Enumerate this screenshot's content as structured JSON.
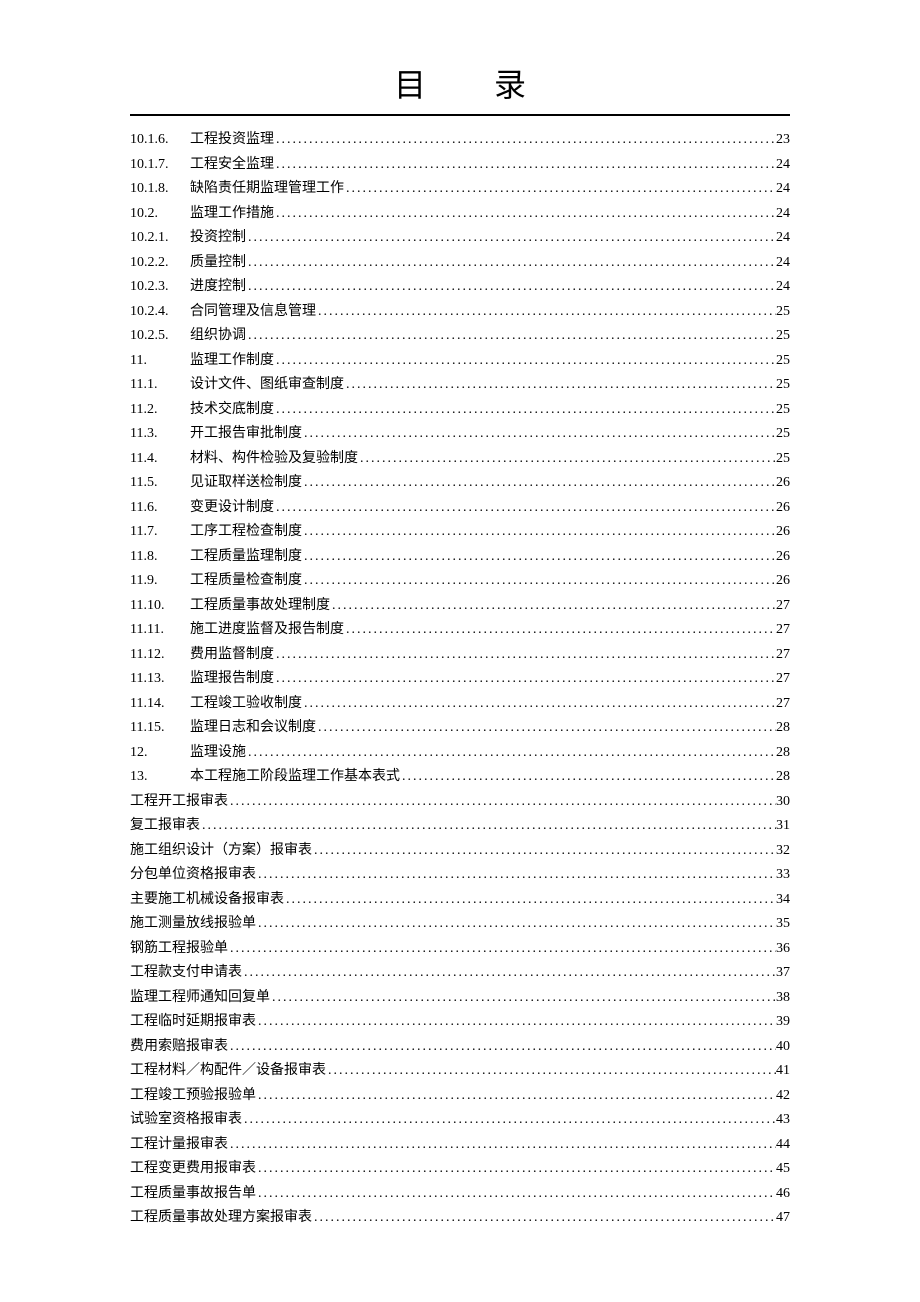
{
  "title": "目  录",
  "entries": [
    {
      "number": "10.1.6.",
      "label": "工程投资监理",
      "page": "23",
      "indented": true
    },
    {
      "number": "10.1.7.",
      "label": "工程安全监理",
      "page": "24",
      "indented": true
    },
    {
      "number": "10.1.8.",
      "label": "缺陷责任期监理管理工作",
      "page": "24",
      "indented": true
    },
    {
      "number": "10.2.",
      "label": "监理工作措施",
      "page": "24",
      "indented": true
    },
    {
      "number": "10.2.1.",
      "label": "投资控制",
      "page": "24",
      "indented": true
    },
    {
      "number": "10.2.2.",
      "label": "质量控制",
      "page": "24",
      "indented": true
    },
    {
      "number": "10.2.3.",
      "label": "进度控制",
      "page": "24",
      "indented": true
    },
    {
      "number": "10.2.4.",
      "label": "合同管理及信息管理",
      "page": "25",
      "indented": true
    },
    {
      "number": "10.2.5.",
      "label": "组织协调",
      "page": "25",
      "indented": true
    },
    {
      "number": "11.",
      "label": "监理工作制度 ",
      "page": "25",
      "indented": true
    },
    {
      "number": "11.1.",
      "label": "设计文件、图纸审查制度",
      "page": "25",
      "indented": true
    },
    {
      "number": "11.2.",
      "label": "技术交底制度",
      "page": "25",
      "indented": true
    },
    {
      "number": "11.3.",
      "label": "开工报告审批制度",
      "page": "25",
      "indented": true
    },
    {
      "number": "11.4.",
      "label": "材料、构件检验及复验制度",
      "page": "25",
      "indented": true
    },
    {
      "number": "11.5.",
      "label": "见证取样送检制度",
      "page": "26",
      "indented": true
    },
    {
      "number": "11.6.",
      "label": "变更设计制度",
      "page": "26",
      "indented": true
    },
    {
      "number": "11.7.",
      "label": "工序工程检查制度",
      "page": "26",
      "indented": true
    },
    {
      "number": "11.8.",
      "label": "工程质量监理制度",
      "page": "26",
      "indented": true
    },
    {
      "number": "11.9.",
      "label": "工程质量检查制度",
      "page": "26",
      "indented": true
    },
    {
      "number": "11.10.",
      "label": "工程质量事故处理制度",
      "page": "27",
      "indented": true
    },
    {
      "number": "11.11.",
      "label": "施工进度监督及报告制度",
      "page": "27",
      "indented": true
    },
    {
      "number": "11.12.",
      "label": "费用监督制度",
      "page": "27",
      "indented": true
    },
    {
      "number": "11.13.",
      "label": "监理报告制度",
      "page": "27",
      "indented": true
    },
    {
      "number": "11.14.",
      "label": "工程竣工验收制度",
      "page": "27",
      "indented": true
    },
    {
      "number": "11.15.",
      "label": "监理日志和会议制度",
      "page": "28",
      "indented": true
    },
    {
      "number": "12.",
      "label": "监理设施 ",
      "page": "28",
      "indented": true
    },
    {
      "number": "13.",
      "label": "本工程施工阶段监理工作基本表式 ",
      "page": "28",
      "indented": true
    },
    {
      "number": "",
      "label": "工程开工报审表 ",
      "page": "30",
      "indented": false
    },
    {
      "number": "",
      "label": "复工报审表 ",
      "page": "31",
      "indented": false
    },
    {
      "number": "",
      "label": "施工组织设计（方案）报审表 ",
      "page": "32",
      "indented": false
    },
    {
      "number": "",
      "label": "分包单位资格报审表 ",
      "page": "33",
      "indented": false
    },
    {
      "number": "",
      "label": "主要施工机械设备报审表 ",
      "page": "34",
      "indented": false
    },
    {
      "number": "",
      "label": "施工测量放线报验单 ",
      "page": "35",
      "indented": false
    },
    {
      "number": "",
      "label": "钢筋工程报验单 ",
      "page": "36",
      "indented": false
    },
    {
      "number": "",
      "label": "工程款支付申请表 ",
      "page": "37",
      "indented": false
    },
    {
      "number": "",
      "label": "监理工程师通知回复单 ",
      "page": "38",
      "indented": false
    },
    {
      "number": "",
      "label": "工程临时延期报审表 ",
      "page": "39",
      "indented": false
    },
    {
      "number": "",
      "label": "费用索赔报审表 ",
      "page": "40",
      "indented": false
    },
    {
      "number": "",
      "label": "工程材料／构配件／设备报审表 ",
      "page": "41",
      "indented": false
    },
    {
      "number": "",
      "label": "工程竣工预验报验单 ",
      "page": "42",
      "indented": false
    },
    {
      "number": "",
      "label": "试验室资格报审表 ",
      "page": "43",
      "indented": false
    },
    {
      "number": "",
      "label": "工程计量报审表 ",
      "page": "44",
      "indented": false
    },
    {
      "number": "",
      "label": "工程变更费用报审表 ",
      "page": "45",
      "indented": false
    },
    {
      "number": "",
      "label": "工程质量事故报告单 ",
      "page": "46",
      "indented": false
    },
    {
      "number": "",
      "label": "工程质量事故处理方案报审表 ",
      "page": "47",
      "indented": false
    }
  ]
}
